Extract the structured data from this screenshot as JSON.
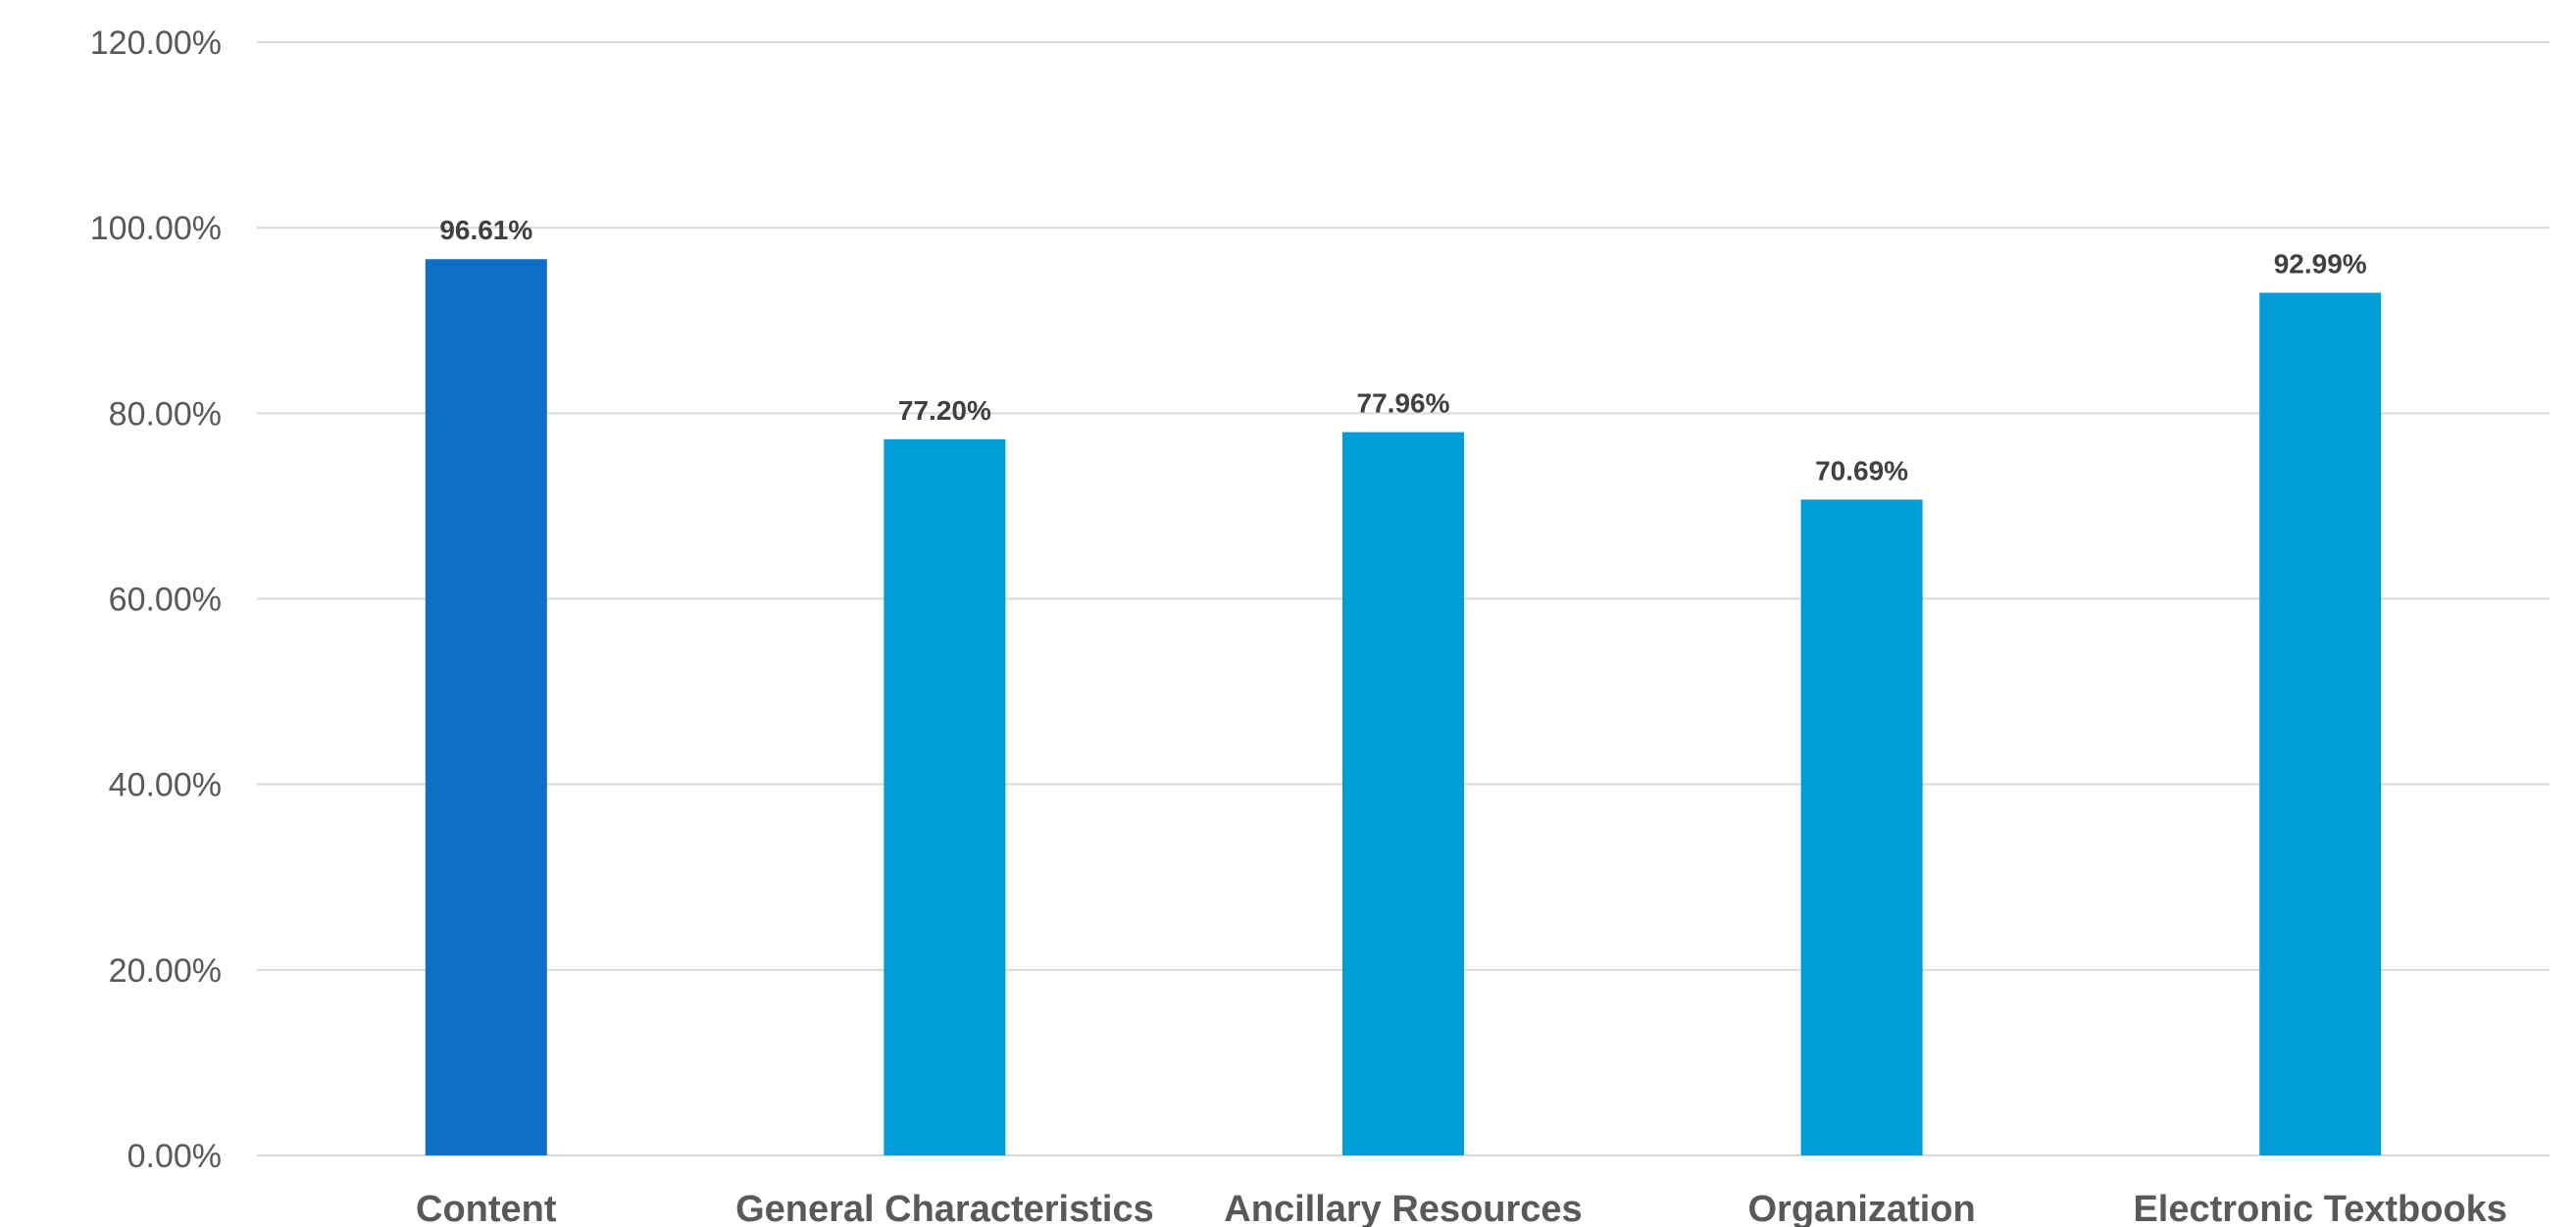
{
  "chart_data": {
    "type": "bar",
    "title": "",
    "xlabel": "",
    "ylabel": "",
    "categories": [
      "Content",
      "General Characteristics",
      "Ancillary Resources",
      "Organization",
      "Electronic Textbooks"
    ],
    "values": [
      96.61,
      77.2,
      77.96,
      70.69,
      92.99
    ],
    "data_labels": [
      "96.61%",
      "77.20%",
      "77.96%",
      "70.69%",
      "92.99%"
    ],
    "ylim": [
      0,
      120
    ],
    "yticks": [
      0,
      20,
      40,
      60,
      80,
      100,
      120
    ],
    "ytick_labels": [
      "0.00%",
      "20.00%",
      "40.00%",
      "60.00%",
      "80.00%",
      "100.00%",
      "120.00%"
    ],
    "grid": true,
    "legend": "none",
    "colors": [
      "#0F6FC6",
      "#009DD9",
      "#009DD9",
      "#009DD9",
      "#009DD9"
    ]
  }
}
